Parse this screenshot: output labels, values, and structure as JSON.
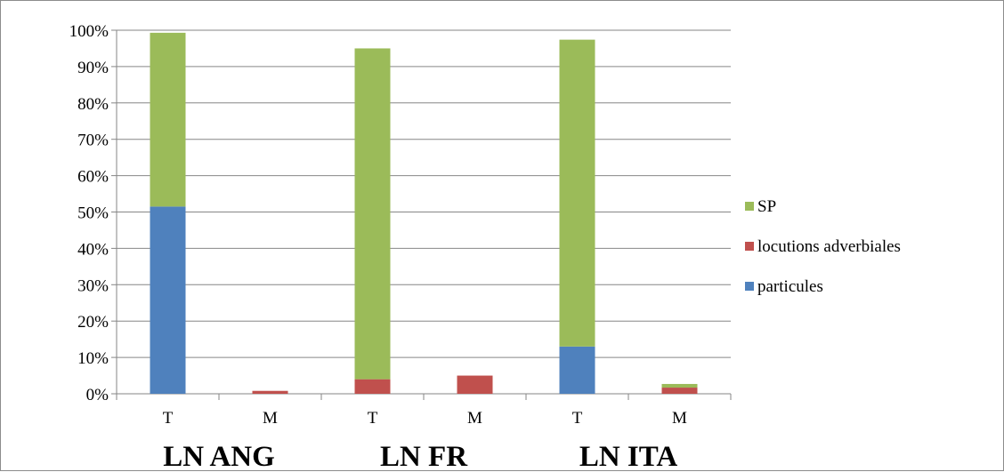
{
  "chart_data": {
    "type": "bar",
    "stacked": true,
    "categories": [
      "T",
      "M",
      "T",
      "M",
      "T",
      "M"
    ],
    "groups": [
      {
        "label": "LN ANG",
        "categories": [
          0,
          1
        ]
      },
      {
        "label": "LN FR",
        "categories": [
          2,
          3
        ]
      },
      {
        "label": "LN ITA",
        "categories": [
          4,
          5
        ]
      }
    ],
    "series": [
      {
        "name": "particules",
        "color": "#4f81bd",
        "values": [
          51.5,
          0,
          0,
          0,
          13,
          0
        ]
      },
      {
        "name": "locutions adverbiales",
        "color": "#c0504d",
        "values": [
          0,
          0.8,
          4,
          5,
          0,
          1.7
        ]
      },
      {
        "name": "SP",
        "color": "#9bbb59",
        "values": [
          47.8,
          0,
          91,
          0,
          84.4,
          1
        ]
      }
    ],
    "yticks": [
      "0%",
      "10%",
      "20%",
      "30%",
      "40%",
      "50%",
      "60%",
      "70%",
      "80%",
      "90%",
      "100%"
    ],
    "ylim": [
      0,
      100
    ],
    "grid": true,
    "legend_position": "right",
    "legend_order": [
      "SP",
      "locutions adverbiales",
      "particules"
    ]
  }
}
